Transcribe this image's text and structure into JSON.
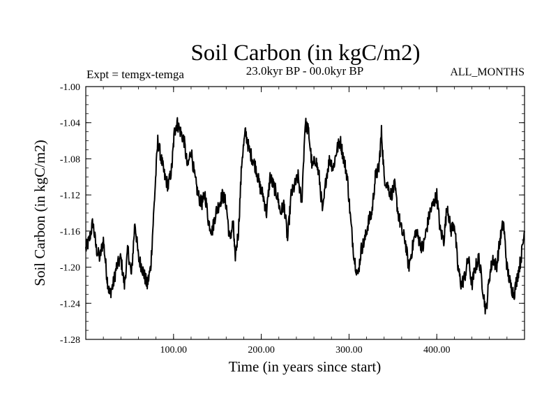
{
  "chart_data": {
    "type": "line",
    "title": "Soil Carbon (in kgC/m2)",
    "subtitle_left": "Expt = temgx-temga",
    "subtitle_center": "23.0kyr BP - 00.0kyr BP",
    "subtitle_right": "ALL_MONTHS",
    "xlabel": "Time (in years since start)",
    "ylabel": "Soil Carbon (in kgC/m2)",
    "xlim": [
      0,
      500
    ],
    "ylim": [
      -1.28,
      -1.0
    ],
    "xticks": [
      100,
      200,
      300,
      400
    ],
    "xtick_labels": [
      "100.00",
      "200.00",
      "300.00",
      "400.00"
    ],
    "yticks": [
      -1.0,
      -1.04,
      -1.08,
      -1.12,
      -1.16,
      -1.2,
      -1.24,
      -1.28
    ],
    "ytick_labels": [
      "-1.00",
      "-1.04",
      "-1.08",
      "-1.12",
      "-1.16",
      "-1.20",
      "-1.24",
      "-1.28"
    ],
    "grid": false,
    "series": [
      {
        "name": "Soil Carbon",
        "color": "#000000",
        "x": [
          0,
          4,
          8,
          12,
          16,
          20,
          24,
          27,
          31,
          35,
          40,
          44,
          48,
          52,
          56,
          60,
          64,
          67,
          70,
          74,
          78,
          82,
          86,
          90,
          94,
          98,
          101,
          104,
          108,
          112,
          116,
          120,
          124,
          128,
          132,
          136,
          140,
          144,
          148,
          152,
          156,
          160,
          164,
          168,
          170,
          174,
          178,
          182,
          186,
          190,
          194,
          198,
          202,
          206,
          210,
          214,
          218,
          222,
          226,
          230,
          234,
          238,
          242,
          246,
          250,
          254,
          258,
          262,
          266,
          270,
          274,
          278,
          282,
          286,
          290,
          294,
          298,
          302,
          306,
          310,
          314,
          318,
          322,
          326,
          330,
          334,
          337,
          340,
          344,
          348,
          352,
          356,
          360,
          364,
          368,
          372,
          376,
          380,
          384,
          388,
          392,
          396,
          400,
          404,
          408,
          412,
          416,
          420,
          424,
          428,
          432,
          436,
          440,
          444,
          448,
          452,
          456,
          460,
          464,
          468,
          472,
          476,
          480,
          484,
          488,
          492,
          496,
          500
        ],
        "values": [
          -1.18,
          -1.17,
          -1.15,
          -1.18,
          -1.19,
          -1.17,
          -1.21,
          -1.23,
          -1.22,
          -1.2,
          -1.19,
          -1.22,
          -1.18,
          -1.21,
          -1.15,
          -1.19,
          -1.2,
          -1.21,
          -1.22,
          -1.2,
          -1.13,
          -1.06,
          -1.08,
          -1.1,
          -1.11,
          -1.09,
          -1.05,
          -1.04,
          -1.05,
          -1.06,
          -1.09,
          -1.07,
          -1.1,
          -1.12,
          -1.13,
          -1.12,
          -1.15,
          -1.16,
          -1.14,
          -1.13,
          -1.12,
          -1.13,
          -1.17,
          -1.15,
          -1.19,
          -1.16,
          -1.08,
          -1.05,
          -1.07,
          -1.08,
          -1.09,
          -1.11,
          -1.12,
          -1.14,
          -1.1,
          -1.11,
          -1.12,
          -1.14,
          -1.13,
          -1.17,
          -1.12,
          -1.11,
          -1.1,
          -1.13,
          -1.04,
          -1.05,
          -1.09,
          -1.08,
          -1.1,
          -1.14,
          -1.1,
          -1.08,
          -1.09,
          -1.07,
          -1.06,
          -1.08,
          -1.1,
          -1.15,
          -1.19,
          -1.21,
          -1.18,
          -1.17,
          -1.15,
          -1.14,
          -1.1,
          -1.09,
          -1.05,
          -1.1,
          -1.11,
          -1.12,
          -1.11,
          -1.14,
          -1.16,
          -1.17,
          -1.2,
          -1.18,
          -1.16,
          -1.17,
          -1.18,
          -1.16,
          -1.14,
          -1.13,
          -1.12,
          -1.16,
          -1.17,
          -1.13,
          -1.16,
          -1.15,
          -1.2,
          -1.22,
          -1.21,
          -1.19,
          -1.22,
          -1.2,
          -1.19,
          -1.22,
          -1.25,
          -1.21,
          -1.19,
          -1.2,
          -1.17,
          -1.15,
          -1.2,
          -1.22,
          -1.23,
          -1.21,
          -1.19,
          -1.16
        ]
      }
    ]
  }
}
